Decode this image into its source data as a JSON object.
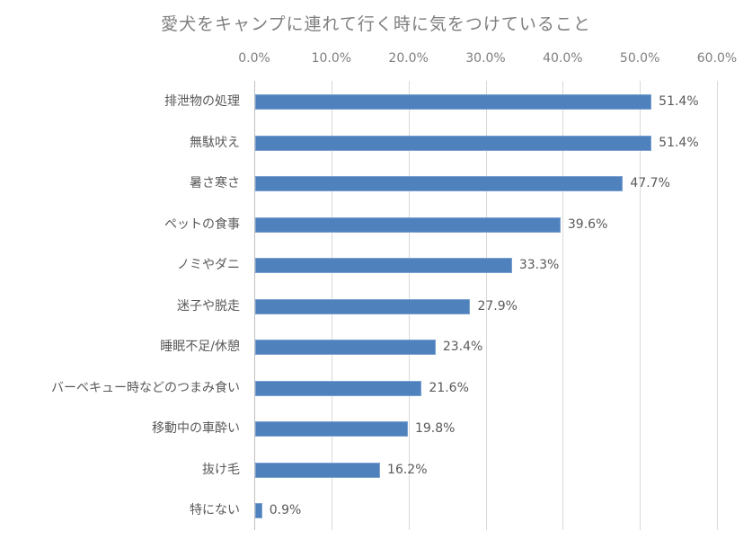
{
  "chart_data": {
    "type": "bar",
    "orientation": "horizontal",
    "title": "愛犬をキャンプに連れて行く時に気をつけていること",
    "xlabel": "",
    "ylabel": "",
    "xlim": [
      0,
      60
    ],
    "x_ticks": [
      "0.0%",
      "10.0%",
      "20.0%",
      "30.0%",
      "40.0%",
      "50.0%",
      "60.0%"
    ],
    "x_axis_position": "top",
    "grid": true,
    "legend": null,
    "bar_color": "#4f81bd",
    "categories": [
      "排泄物の処理",
      "無駄吠え",
      "暑さ寒さ",
      "ペットの食事",
      "ノミやダニ",
      "迷子や脱走",
      "睡眠不足/休憩",
      "バーベキュー時などのつまみ食い",
      "移動中の車酔い",
      "抜け毛",
      "特にない"
    ],
    "values": [
      51.4,
      51.4,
      47.7,
      39.6,
      33.3,
      27.9,
      23.4,
      21.6,
      19.8,
      16.2,
      0.9
    ],
    "labels": [
      "51.4%",
      "51.4%",
      "47.7%",
      "39.6%",
      "33.3%",
      "27.9%",
      "23.4%",
      "21.6%",
      "19.8%",
      "16.2%",
      "0.9%"
    ]
  }
}
